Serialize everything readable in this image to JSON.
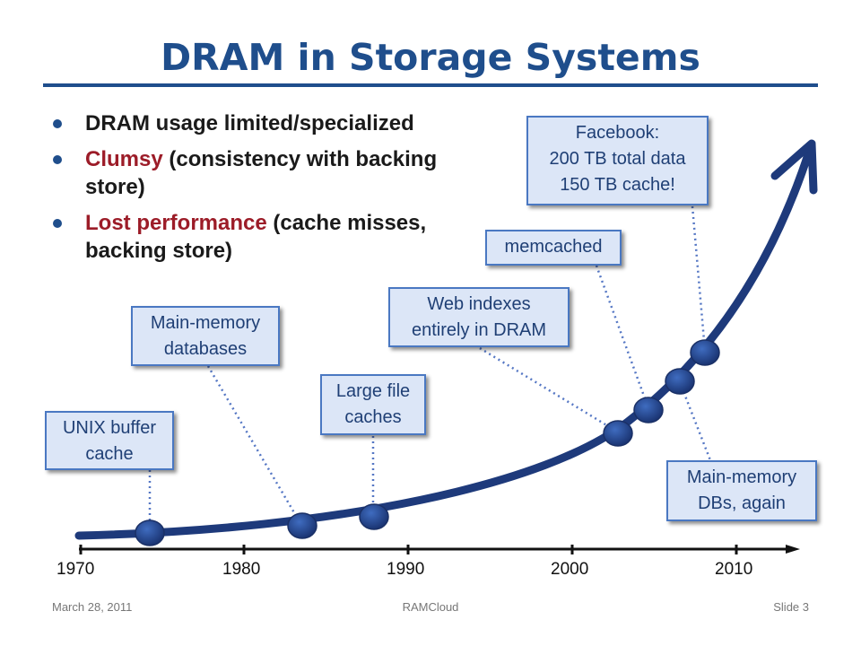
{
  "slide": {
    "title": "DRAM in Storage Systems",
    "bullets": [
      {
        "highlight": "",
        "text": "DRAM usage limited/specialized"
      },
      {
        "highlight": "Clumsy",
        "text": " (consistency with backing store)"
      },
      {
        "highlight": "Lost performance",
        "text": " (cache misses, backing store)"
      }
    ]
  },
  "timeline": {
    "years": [
      "1970",
      "1980",
      "1990",
      "2000",
      "2010"
    ],
    "callouts": [
      {
        "line1": "UNIX buffer",
        "line2": "cache"
      },
      {
        "line1": "Main-memory",
        "line2": "databases"
      },
      {
        "line1": "Large file",
        "line2": "caches"
      },
      {
        "line1": "Web indexes",
        "line2": "entirely in DRAM"
      },
      {
        "line1": "memcached"
      },
      {
        "line1": "Facebook:",
        "line2": "200 TB total data",
        "line3": "150 TB cache!"
      },
      {
        "line1": "Main-memory",
        "line2": "DBs, again"
      }
    ]
  },
  "footer": {
    "date": "March 28, 2011",
    "center": "RAMCloud",
    "slide": "Slide 3"
  },
  "colors": {
    "title": "#1f4e8c",
    "highlight": "#9c1c28",
    "curve": "#1e3a7b",
    "callout_bg": "#dce6f7",
    "callout_border": "#4a78c2"
  }
}
